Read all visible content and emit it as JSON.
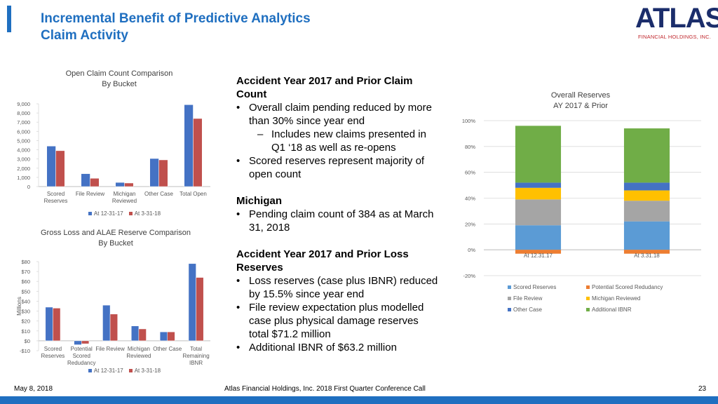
{
  "header": {
    "title": [
      "Incremental Benefit of Predictive Analytics",
      "Claim Activity"
    ],
    "logo": "ATLAS",
    "logo_sub": "FINANCIAL HOLDINGS, INC."
  },
  "chart_data": [
    {
      "type": "bar",
      "title": "Open Claim Count Comparison",
      "subtitle": "By Bucket",
      "categories": [
        "Scored Reserves",
        "File Review",
        "Michigan Reviewed",
        "Other Case",
        "Total Open"
      ],
      "series": [
        {
          "name": "At 12-31-17",
          "color": "#4472c4",
          "values": [
            4400,
            1400,
            450,
            3050,
            8900
          ]
        },
        {
          "name": "At 3-31-18",
          "color": "#c0504d",
          "values": [
            3900,
            900,
            384,
            2900,
            7400
          ]
        }
      ],
      "ylim": [
        0,
        9000
      ],
      "yticks": [
        0,
        {
          "value": 1000,
          "label": "1,000"
        },
        {
          "value": 2000,
          "label": "2,000"
        },
        {
          "value": 3000,
          "label": "3,000"
        },
        {
          "value": 4000,
          "label": "4,000"
        },
        {
          "value": 5000,
          "label": "5,000"
        },
        {
          "value": 6000,
          "label": "6,000"
        },
        {
          "value": 7000,
          "label": "7,000"
        },
        {
          "value": 8000,
          "label": "8,000"
        },
        {
          "value": 9000,
          "label": "9,000"
        }
      ],
      "grid": false,
      "legend": "bottom"
    },
    {
      "type": "bar",
      "title": "Gross Loss and ALAE Reserve Comparison",
      "subtitle": "By Bucket",
      "y_label": "Millions",
      "categories": [
        "Scored Reserves",
        "Potential Scored Redudancy",
        "File Review",
        "Michigan Reviewed",
        "Other Case",
        "Total Remaining IBNR"
      ],
      "series": [
        {
          "name": "At 12-31-17",
          "color": "#4472c4",
          "values": [
            34,
            -4,
            36,
            15,
            9,
            78
          ]
        },
        {
          "name": "At 3-31-18",
          "color": "#c0504d",
          "values": [
            33,
            -3,
            27,
            12,
            9,
            64
          ]
        }
      ],
      "ylim": [
        -10,
        80
      ],
      "yticks": [
        {
          "value": -10,
          "label": "-$10"
        },
        {
          "value": 0,
          "label": "$0"
        },
        {
          "value": 10,
          "label": "$10"
        },
        {
          "value": 20,
          "label": "$20"
        },
        {
          "value": 30,
          "label": "$30"
        },
        {
          "value": 40,
          "label": "$40"
        },
        {
          "value": 50,
          "label": "$50"
        },
        {
          "value": 60,
          "label": "$60"
        },
        {
          "value": 70,
          "label": "$70"
        },
        {
          "value": 80,
          "label": "$80"
        }
      ],
      "grid": false,
      "legend": "bottom"
    },
    {
      "type": "stacked_bar",
      "title": "Overall Reserves",
      "subtitle": "AY 2017 & Prior",
      "categories": [
        "At 12.31.17",
        "At 3.31.18"
      ],
      "series": [
        {
          "name": "Scored Reserves",
          "color": "#5b9bd5",
          "values": [
            19,
            22
          ]
        },
        {
          "name": "Potential Scored Redudancy",
          "color": "#ed7d31",
          "values": [
            -3,
            -3
          ]
        },
        {
          "name": "File Review",
          "color": "#a5a5a5",
          "values": [
            20,
            16
          ]
        },
        {
          "name": "Michigan Reviewed",
          "color": "#ffc000",
          "values": [
            9,
            8
          ]
        },
        {
          "name": "Other Case",
          "color": "#4472c4",
          "values": [
            4,
            6
          ]
        },
        {
          "name": "Additional IBNR",
          "color": "#70ad47",
          "values": [
            44,
            42
          ]
        }
      ],
      "ylim": [
        -20,
        100
      ],
      "yticks": [
        {
          "value": -20,
          "label": "-20%"
        },
        {
          "value": 0,
          "label": "0%"
        },
        {
          "value": 20,
          "label": "20%"
        },
        {
          "value": 40,
          "label": "40%"
        },
        {
          "value": 60,
          "label": "60%"
        },
        {
          "value": 80,
          "label": "80%"
        },
        {
          "value": 100,
          "label": "100%"
        }
      ],
      "grid": true,
      "legend": "bottom"
    }
  ],
  "text": {
    "sections": [
      {
        "heading": "Accident Year 2017 and Prior Claim Count",
        "items": [
          {
            "text": "Overall claim pending reduced by more than 30% since year end",
            "sub": [
              "Includes new claims presented in Q1 ‘18 as well as re-opens"
            ]
          },
          {
            "text": "Scored reserves represent majority of open count"
          }
        ]
      },
      {
        "heading": "Michigan",
        "items": [
          {
            "text": "Pending claim count of 384 as at March 31, 2018"
          }
        ]
      },
      {
        "heading": "Accident Year 2017 and Prior Loss Reserves",
        "items": [
          {
            "text": "Loss reserves (case plus IBNR) reduced by 15.5% since year end"
          },
          {
            "text": "File review expectation plus modelled case plus physical damage reserves total $71.2 million"
          },
          {
            "text": "Additional IBNR of $63.2 million"
          }
        ]
      }
    ]
  },
  "footer": {
    "date": "May 8, 2018",
    "center": "Atlas Financial Holdings, Inc. 2018 First Quarter Conference Call",
    "page": "23"
  }
}
